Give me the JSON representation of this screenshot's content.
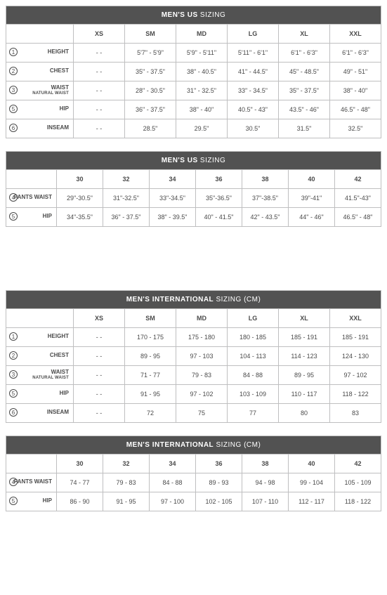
{
  "tables": [
    {
      "title_bold": "MEN'S US",
      "title_thin": "SIZING",
      "first_col_class": "first",
      "sizes": [
        "XS",
        "SM",
        "MD",
        "LG",
        "XL",
        "XXL"
      ],
      "rows": [
        {
          "num": "1",
          "label": "HEIGHT",
          "sub": "",
          "cells": [
            "- -",
            "5'7\" - 5'9\"",
            "5'9\" - 5'11\"",
            "5'11\" - 6'1\"",
            "6'1\" - 6'3\"",
            "6'1\" - 6'3\""
          ]
        },
        {
          "num": "2",
          "label": "CHEST",
          "sub": "",
          "cells": [
            "- -",
            "35\" - 37.5\"",
            "38\" - 40.5\"",
            "41\" - 44.5\"",
            "45\" - 48.5\"",
            "49\" - 51\""
          ]
        },
        {
          "num": "3",
          "label": "WAIST",
          "sub": "NATURAL WAIST",
          "cells": [
            "- -",
            "28\" - 30.5\"",
            "31\" - 32.5\"",
            "33\" - 34.5\"",
            "35\" - 37.5\"",
            "38\" - 40\""
          ]
        },
        {
          "num": "5",
          "label": "HIP",
          "sub": "",
          "cells": [
            "- -",
            "36\" - 37.5\"",
            "38\" - 40\"",
            "40.5\" - 43\"",
            "43.5\" - 46\"",
            "46.5\" - 48\""
          ]
        },
        {
          "num": "6",
          "label": "INSEAM",
          "sub": "",
          "cells": [
            "- -",
            "28.5\"",
            "29.5\"",
            "30.5\"",
            "31.5\"",
            "32.5\""
          ]
        }
      ],
      "gap_large": false
    },
    {
      "title_bold": "MEN'S US",
      "title_thin": "SIZING",
      "first_col_class": "first-narrow",
      "sizes": [
        "30",
        "32",
        "34",
        "36",
        "38",
        "40",
        "42"
      ],
      "rows": [
        {
          "num": "4",
          "label": "PANTS WAIST",
          "sub": "",
          "cells": [
            "29\"-30.5\"",
            "31\"-32.5\"",
            "33\"-34.5\"",
            "35\"-36.5\"",
            "37\"-38.5\"",
            "39\"-41\"",
            "41.5\"-43\""
          ]
        },
        {
          "num": "5",
          "label": "HIP",
          "sub": "",
          "cells": [
            "34\"-35.5\"",
            "36\" - 37.5\"",
            "38\" - 39.5\"",
            "40\" - 41.5\"",
            "42\" - 43.5\"",
            "44\" - 46\"",
            "46.5\" - 48\""
          ]
        }
      ],
      "gap_large": true
    },
    {
      "title_bold": "MEN'S INTERNATIONAL",
      "title_thin": "SIZING (CM)",
      "first_col_class": "first",
      "sizes": [
        "XS",
        "SM",
        "MD",
        "LG",
        "XL",
        "XXL"
      ],
      "rows": [
        {
          "num": "1",
          "label": "HEIGHT",
          "sub": "",
          "cells": [
            "- -",
            "170 - 175",
            "175 - 180",
            "180 - 185",
            "185 - 191",
            "185 - 191"
          ]
        },
        {
          "num": "2",
          "label": "CHEST",
          "sub": "",
          "cells": [
            "- -",
            "89 - 95",
            "97 - 103",
            "104 - 113",
            "114 - 123",
            "124 - 130"
          ]
        },
        {
          "num": "3",
          "label": "WAIST",
          "sub": "NATURAL WAIST",
          "cells": [
            "- -",
            "71 - 77",
            "79 - 83",
            "84 - 88",
            "89 - 95",
            "97 - 102"
          ]
        },
        {
          "num": "5",
          "label": "HIP",
          "sub": "",
          "cells": [
            "- -",
            "91 - 95",
            "97 - 102",
            "103 - 109",
            "110 - 117",
            "118 - 122"
          ]
        },
        {
          "num": "6",
          "label": "INSEAM",
          "sub": "",
          "cells": [
            "- -",
            "72",
            "75",
            "77",
            "80",
            "83"
          ]
        }
      ],
      "gap_large": false
    },
    {
      "title_bold": "MEN'S INTERNATIONAL",
      "title_thin": "SIZING (CM)",
      "first_col_class": "first-narrow",
      "sizes": [
        "30",
        "32",
        "34",
        "36",
        "38",
        "40",
        "42"
      ],
      "rows": [
        {
          "num": "4",
          "label": "PANTS WAIST",
          "sub": "",
          "cells": [
            "74 - 77",
            "79 - 83",
            "84 - 88",
            "89 - 93",
            "94 - 98",
            "99 - 104",
            "105 - 109"
          ]
        },
        {
          "num": "5",
          "label": "HIP",
          "sub": "",
          "cells": [
            "86 - 90",
            "91 - 95",
            "97 - 100",
            "102 - 105",
            "107 - 110",
            "112 - 117",
            "118 - 122"
          ]
        }
      ],
      "gap_large": false
    }
  ]
}
